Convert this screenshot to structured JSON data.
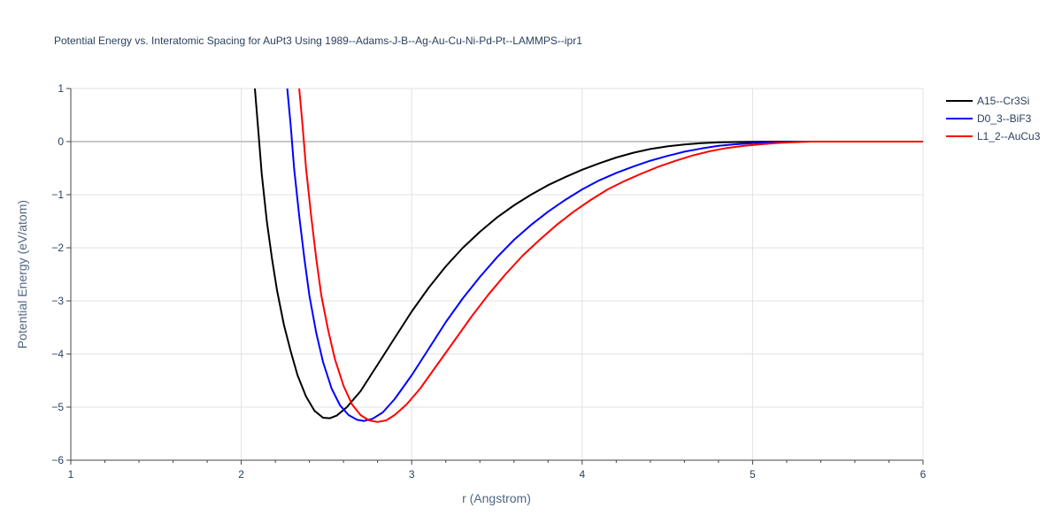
{
  "chart_data": {
    "type": "line",
    "title": "Potential Energy vs. Interatomic Spacing for AuPt3 Using 1989--Adams-J-B--Ag-Au-Cu-Ni-Pd-Pt--LAMMPS--ipr1",
    "xlabel": "r (Angstrom)",
    "ylabel": "Potential Energy (eV/atom)",
    "xlim": [
      1,
      6
    ],
    "ylim": [
      -6,
      1
    ],
    "x_ticks": [
      1,
      2,
      3,
      4,
      5,
      6
    ],
    "y_ticks": [
      1,
      0,
      -1,
      -2,
      -3,
      -4,
      -5,
      -6
    ],
    "x_tick_labels": [
      "1",
      "2",
      "3",
      "4",
      "5",
      "6"
    ],
    "y_tick_labels": [
      "1",
      "0",
      "−1",
      "−2",
      "−3",
      "−4",
      "−5",
      "−6"
    ],
    "grid": true,
    "legend_position": "top-right",
    "series": [
      {
        "name": "A15--Cr3Si",
        "color": "#000000",
        "points": [
          [
            2.08,
            1.0
          ],
          [
            2.1,
            0.2
          ],
          [
            2.12,
            -0.6
          ],
          [
            2.15,
            -1.5
          ],
          [
            2.18,
            -2.2
          ],
          [
            2.21,
            -2.8
          ],
          [
            2.25,
            -3.45
          ],
          [
            2.29,
            -3.95
          ],
          [
            2.33,
            -4.4
          ],
          [
            2.38,
            -4.8
          ],
          [
            2.43,
            -5.07
          ],
          [
            2.48,
            -5.2
          ],
          [
            2.52,
            -5.21
          ],
          [
            2.56,
            -5.16
          ],
          [
            2.62,
            -5.0
          ],
          [
            2.7,
            -4.7
          ],
          [
            2.8,
            -4.2
          ],
          [
            2.9,
            -3.7
          ],
          [
            3.0,
            -3.2
          ],
          [
            3.1,
            -2.75
          ],
          [
            3.2,
            -2.35
          ],
          [
            3.3,
            -2.0
          ],
          [
            3.4,
            -1.7
          ],
          [
            3.5,
            -1.43
          ],
          [
            3.6,
            -1.2
          ],
          [
            3.7,
            -1.0
          ],
          [
            3.8,
            -0.82
          ],
          [
            3.9,
            -0.67
          ],
          [
            4.0,
            -0.53
          ],
          [
            4.1,
            -0.41
          ],
          [
            4.2,
            -0.3
          ],
          [
            4.3,
            -0.21
          ],
          [
            4.4,
            -0.14
          ],
          [
            4.5,
            -0.09
          ],
          [
            4.6,
            -0.055
          ],
          [
            4.7,
            -0.03
          ],
          [
            4.8,
            -0.015
          ],
          [
            4.9,
            -0.008
          ],
          [
            5.0,
            -0.003
          ],
          [
            5.2,
            0.0
          ],
          [
            6.0,
            0.0
          ]
        ]
      },
      {
        "name": "D0_3--BiF3",
        "color": "#0000ff",
        "points": [
          [
            2.27,
            1.0
          ],
          [
            2.29,
            0.3
          ],
          [
            2.31,
            -0.5
          ],
          [
            2.34,
            -1.4
          ],
          [
            2.37,
            -2.2
          ],
          [
            2.4,
            -2.9
          ],
          [
            2.44,
            -3.6
          ],
          [
            2.48,
            -4.15
          ],
          [
            2.53,
            -4.65
          ],
          [
            2.58,
            -4.97
          ],
          [
            2.63,
            -5.15
          ],
          [
            2.68,
            -5.24
          ],
          [
            2.72,
            -5.26
          ],
          [
            2.77,
            -5.22
          ],
          [
            2.83,
            -5.1
          ],
          [
            2.9,
            -4.85
          ],
          [
            3.0,
            -4.4
          ],
          [
            3.1,
            -3.9
          ],
          [
            3.2,
            -3.4
          ],
          [
            3.3,
            -2.95
          ],
          [
            3.4,
            -2.55
          ],
          [
            3.5,
            -2.18
          ],
          [
            3.6,
            -1.85
          ],
          [
            3.7,
            -1.57
          ],
          [
            3.8,
            -1.32
          ],
          [
            3.9,
            -1.1
          ],
          [
            4.0,
            -0.9
          ],
          [
            4.1,
            -0.73
          ],
          [
            4.2,
            -0.59
          ],
          [
            4.3,
            -0.47
          ],
          [
            4.4,
            -0.36
          ],
          [
            4.5,
            -0.27
          ],
          [
            4.6,
            -0.19
          ],
          [
            4.7,
            -0.13
          ],
          [
            4.8,
            -0.08
          ],
          [
            4.9,
            -0.05
          ],
          [
            5.0,
            -0.03
          ],
          [
            5.1,
            -0.015
          ],
          [
            5.2,
            -0.005
          ],
          [
            5.3,
            0.0
          ],
          [
            6.0,
            0.0
          ]
        ]
      },
      {
        "name": "L1_2--AuCu3",
        "color": "#ff0000",
        "points": [
          [
            2.34,
            1.0
          ],
          [
            2.36,
            0.3
          ],
          [
            2.38,
            -0.5
          ],
          [
            2.41,
            -1.4
          ],
          [
            2.44,
            -2.2
          ],
          [
            2.47,
            -2.9
          ],
          [
            2.51,
            -3.55
          ],
          [
            2.55,
            -4.1
          ],
          [
            2.6,
            -4.6
          ],
          [
            2.65,
            -4.95
          ],
          [
            2.7,
            -5.15
          ],
          [
            2.75,
            -5.25
          ],
          [
            2.8,
            -5.28
          ],
          [
            2.85,
            -5.25
          ],
          [
            2.9,
            -5.15
          ],
          [
            2.97,
            -4.95
          ],
          [
            3.05,
            -4.65
          ],
          [
            3.15,
            -4.2
          ],
          [
            3.25,
            -3.75
          ],
          [
            3.35,
            -3.3
          ],
          [
            3.45,
            -2.88
          ],
          [
            3.55,
            -2.5
          ],
          [
            3.65,
            -2.15
          ],
          [
            3.75,
            -1.85
          ],
          [
            3.85,
            -1.57
          ],
          [
            3.95,
            -1.32
          ],
          [
            4.05,
            -1.1
          ],
          [
            4.15,
            -0.9
          ],
          [
            4.25,
            -0.74
          ],
          [
            4.35,
            -0.6
          ],
          [
            4.45,
            -0.47
          ],
          [
            4.55,
            -0.36
          ],
          [
            4.65,
            -0.26
          ],
          [
            4.75,
            -0.18
          ],
          [
            4.85,
            -0.12
          ],
          [
            4.95,
            -0.08
          ],
          [
            5.05,
            -0.05
          ],
          [
            5.15,
            -0.025
          ],
          [
            5.25,
            -0.01
          ],
          [
            5.35,
            0.0
          ],
          [
            6.0,
            0.0
          ]
        ]
      }
    ]
  }
}
